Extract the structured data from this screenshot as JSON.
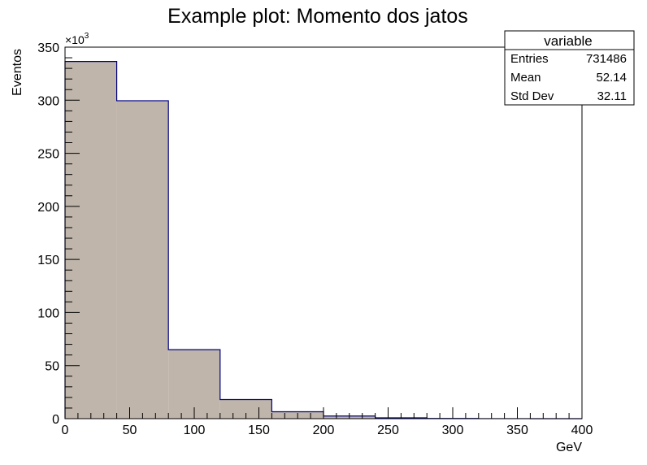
{
  "chart_data": {
    "type": "bar",
    "title": "Example plot: Momento dos jatos",
    "xlabel": "GeV",
    "ylabel": "Eventos",
    "y_multiplier": "×10",
    "y_multiplier_exp": "3",
    "xlim": [
      0,
      400
    ],
    "ylim": [
      0,
      350
    ],
    "x_ticks": [
      0,
      50,
      100,
      150,
      200,
      250,
      300,
      350,
      400
    ],
    "y_ticks": [
      0,
      50,
      100,
      150,
      200,
      250,
      300,
      350
    ],
    "bins": [
      {
        "lo": 0,
        "hi": 40,
        "value": 336.5
      },
      {
        "lo": 40,
        "hi": 80,
        "value": 299.5
      },
      {
        "lo": 80,
        "hi": 120,
        "value": 65.0
      },
      {
        "lo": 120,
        "hi": 160,
        "value": 18.0
      },
      {
        "lo": 160,
        "hi": 200,
        "value": 6.5
      },
      {
        "lo": 200,
        "hi": 240,
        "value": 2.5
      },
      {
        "lo": 240,
        "hi": 280,
        "value": 0.8
      },
      {
        "lo": 280,
        "hi": 320,
        "value": 0.2
      },
      {
        "lo": 320,
        "hi": 360,
        "value": 0.05
      },
      {
        "lo": 360,
        "hi": 400,
        "value": 0.0
      }
    ],
    "fill_color": "#bfb5aa",
    "line_color": "#000080",
    "grid": false,
    "legend": "none",
    "stats_box": {
      "title": "variable",
      "rows": [
        {
          "label": "Entries",
          "value": "731486"
        },
        {
          "label": "Mean",
          "value": "52.14"
        },
        {
          "label": "Std Dev",
          "value": "32.11"
        }
      ]
    }
  }
}
